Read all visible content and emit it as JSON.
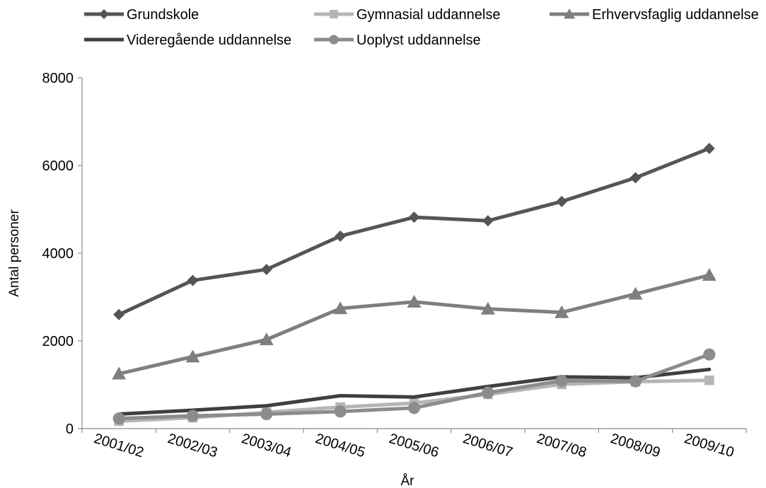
{
  "chart_data": {
    "type": "line",
    "title": "",
    "xlabel": "År",
    "ylabel": "Antal personer",
    "ylim": [
      0,
      8000
    ],
    "yticks": [
      0,
      2000,
      4000,
      6000,
      8000
    ],
    "grid": false,
    "legend_position": "top",
    "categories": [
      "2001/02",
      "2002/03",
      "2003/04",
      "2004/05",
      "2005/06",
      "2006/07",
      "2007/08",
      "2008/09",
      "2009/10"
    ],
    "series": [
      {
        "name": "Grundskole",
        "marker": "diamond",
        "color": "#555555",
        "values": [
          2600,
          3380,
          3630,
          4390,
          4820,
          4740,
          5180,
          5720,
          6390
        ]
      },
      {
        "name": "Gymnasial uddannelse",
        "marker": "square",
        "color": "#b5b5b5",
        "values": [
          170,
          250,
          370,
          490,
          580,
          780,
          1010,
          1070,
          1100
        ]
      },
      {
        "name": "Erhvervsfaglig uddannelse",
        "marker": "triangle",
        "color": "#7f7f7f",
        "values": [
          1250,
          1640,
          2030,
          2740,
          2890,
          2730,
          2650,
          3070,
          3500
        ]
      },
      {
        "name": "Videregående uddannelse",
        "marker": "none",
        "color": "#3f3f3f",
        "values": [
          330,
          420,
          520,
          750,
          720,
          960,
          1180,
          1160,
          1350
        ]
      },
      {
        "name": "Uoplyst uddannelse",
        "marker": "circle",
        "color": "#8c8c8c",
        "values": [
          230,
          290,
          330,
          390,
          470,
          820,
          1090,
          1080,
          1690
        ]
      }
    ]
  }
}
